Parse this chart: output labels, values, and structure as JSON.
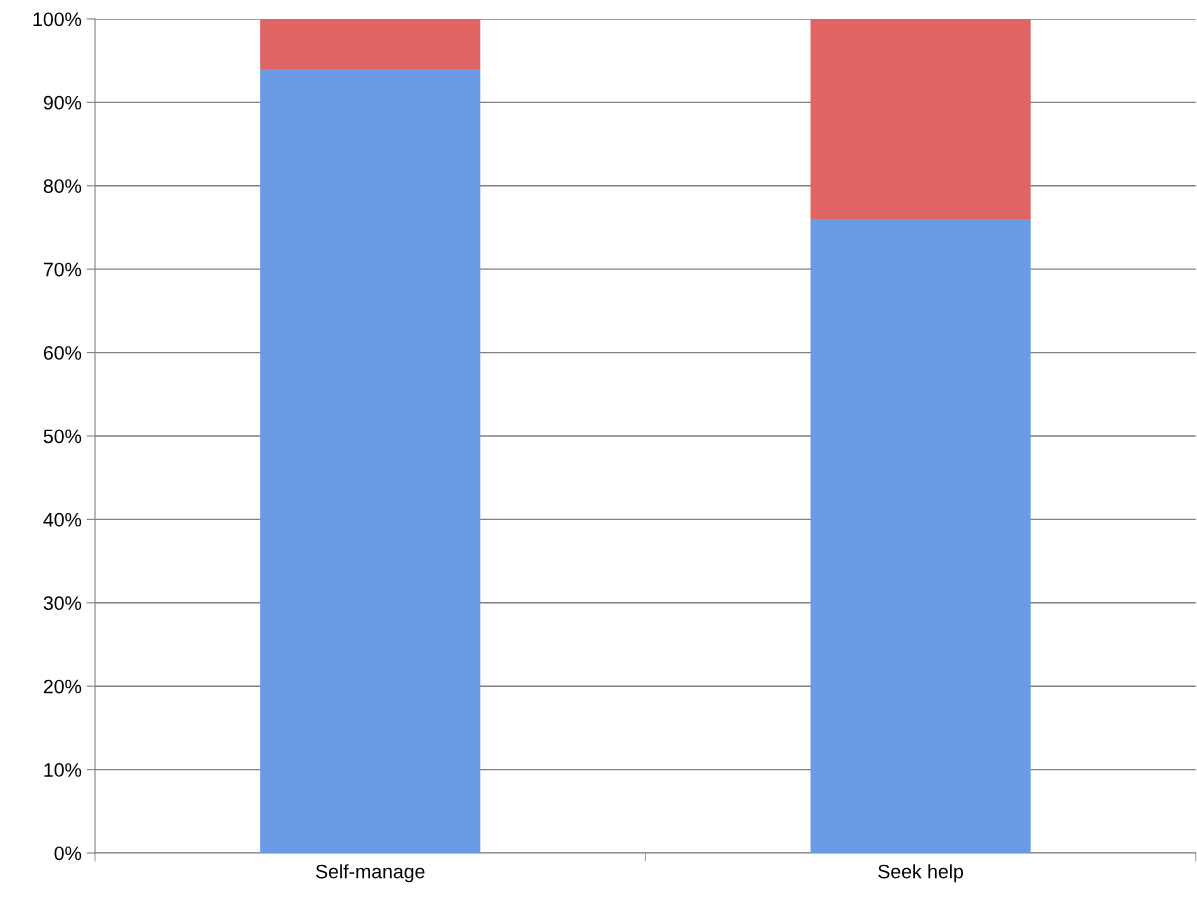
{
  "chart_data": {
    "type": "bar",
    "stacked": true,
    "categories": [
      "Self-manage",
      "Seek help"
    ],
    "series": [
      {
        "color": "#6c9be6",
        "values": [
          94,
          76
        ]
      },
      {
        "color": "#e06464",
        "values": [
          6,
          24
        ]
      }
    ],
    "ylim": [
      0,
      100
    ],
    "yticks": [
      {
        "value": 0,
        "label": "0%"
      },
      {
        "value": 10,
        "label": "10%"
      },
      {
        "value": 20,
        "label": "20%"
      },
      {
        "value": 30,
        "label": "30%"
      },
      {
        "value": 40,
        "label": "40%"
      },
      {
        "value": 50,
        "label": "50%"
      },
      {
        "value": 60,
        "label": "60%"
      },
      {
        "value": 70,
        "label": "70%"
      },
      {
        "value": 80,
        "label": "80%"
      },
      {
        "value": 90,
        "label": "90%"
      },
      {
        "value": 100,
        "label": "100%"
      }
    ],
    "grid": "y",
    "legend": false
  }
}
